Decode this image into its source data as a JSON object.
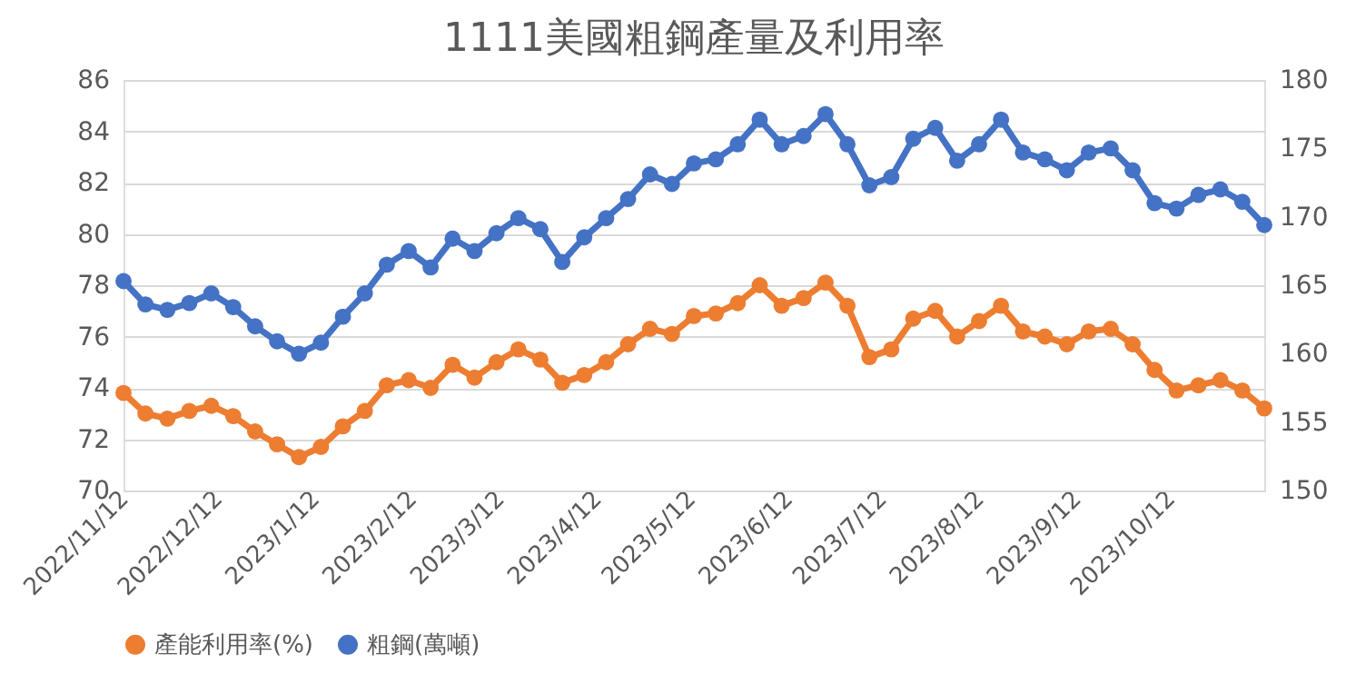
{
  "chart_data": {
    "type": "line",
    "title": "1111美國粗鋼產量及利用率",
    "x": [
      "2022-11-12",
      "2022-11-19",
      "2022-11-26",
      "2022-12-03",
      "2022-12-10",
      "2022-12-17",
      "2022-12-24",
      "2022-12-31",
      "2023-01-07",
      "2023-01-14",
      "2023-01-21",
      "2023-01-28",
      "2023-02-04",
      "2023-02-11",
      "2023-02-18",
      "2023-02-25",
      "2023-03-04",
      "2023-03-11",
      "2023-03-18",
      "2023-03-25",
      "2023-04-01",
      "2023-04-08",
      "2023-04-15",
      "2023-04-22",
      "2023-04-29",
      "2023-05-06",
      "2023-05-13",
      "2023-05-20",
      "2023-05-27",
      "2023-06-03",
      "2023-06-10",
      "2023-06-17",
      "2023-06-24",
      "2023-07-01",
      "2023-07-08",
      "2023-07-15",
      "2023-07-22",
      "2023-07-29",
      "2023-08-05",
      "2023-08-12",
      "2023-08-19",
      "2023-08-26",
      "2023-09-02",
      "2023-09-09",
      "2023-09-16",
      "2023-09-23",
      "2023-09-30",
      "2023-10-07",
      "2023-10-14",
      "2023-10-21",
      "2023-10-28",
      "2023-11-04",
      "2023-11-11"
    ],
    "series": [
      {
        "name": "產能利用率(%)",
        "color": "#ed7d31",
        "values": [
          73.8,
          73.0,
          72.8,
          73.1,
          73.3,
          72.9,
          72.3,
          71.8,
          71.3,
          71.7,
          72.5,
          73.1,
          74.1,
          74.3,
          74.0,
          74.9,
          74.4,
          75.0,
          75.5,
          75.1,
          74.2,
          74.5,
          75.0,
          75.7,
          76.3,
          76.1,
          76.8,
          76.9,
          77.3,
          78.0,
          77.2,
          77.5,
          78.1,
          77.2,
          75.2,
          75.5,
          76.7,
          77.0,
          76.0,
          76.6,
          77.2,
          76.2,
          76.0,
          75.7,
          76.2,
          76.3,
          75.7,
          74.7,
          73.9,
          74.1,
          74.3,
          73.9,
          73.2
        ]
      },
      {
        "name": "粗鋼(萬噸)",
        "color": "#4472c4",
        "axis": "y2",
        "values": [
          165.3,
          163.6,
          163.2,
          163.7,
          164.4,
          163.4,
          162.0,
          160.9,
          160.0,
          160.8,
          162.7,
          164.4,
          166.5,
          167.5,
          166.3,
          168.4,
          167.5,
          168.8,
          169.9,
          169.1,
          166.7,
          168.5,
          169.9,
          171.3,
          173.1,
          172.4,
          173.9,
          174.2,
          175.3,
          177.1,
          175.3,
          175.9,
          177.5,
          175.3,
          172.3,
          172.9,
          175.7,
          176.5,
          174.1,
          175.3,
          177.1,
          174.7,
          174.2,
          173.4,
          174.7,
          175.0,
          173.4,
          171.0,
          170.6,
          171.6,
          172.0,
          171.1,
          169.4
        ]
      }
    ],
    "xlim": [
      "2022-11-12",
      "2023-11-11"
    ],
    "xticks": [
      {
        "value": "2022-11-12",
        "label": "2022/11/12"
      },
      {
        "value": "2022-12-12",
        "label": "2022/12/12"
      },
      {
        "value": "2023-01-12",
        "label": "2023/1/12"
      },
      {
        "value": "2023-02-12",
        "label": "2023/2/12"
      },
      {
        "value": "2023-03-12",
        "label": "2023/3/12"
      },
      {
        "value": "2023-04-12",
        "label": "2023/4/12"
      },
      {
        "value": "2023-05-12",
        "label": "2023/5/12"
      },
      {
        "value": "2023-06-12",
        "label": "2023/6/12"
      },
      {
        "value": "2023-07-12",
        "label": "2023/7/12"
      },
      {
        "value": "2023-08-12",
        "label": "2023/8/12"
      },
      {
        "value": "2023-09-12",
        "label": "2023/9/12"
      },
      {
        "value": "2023-10-12",
        "label": "2023/10/12"
      }
    ],
    "ylim": [
      70,
      86
    ],
    "yticks": [
      70,
      72,
      74,
      76,
      78,
      80,
      82,
      84,
      86
    ],
    "y2lim": [
      150,
      180
    ],
    "y2ticks": [
      150,
      155,
      160,
      165,
      170,
      175,
      180
    ],
    "grid": "y",
    "legend": "bottom",
    "marker": "circle",
    "line_style": "solid"
  }
}
